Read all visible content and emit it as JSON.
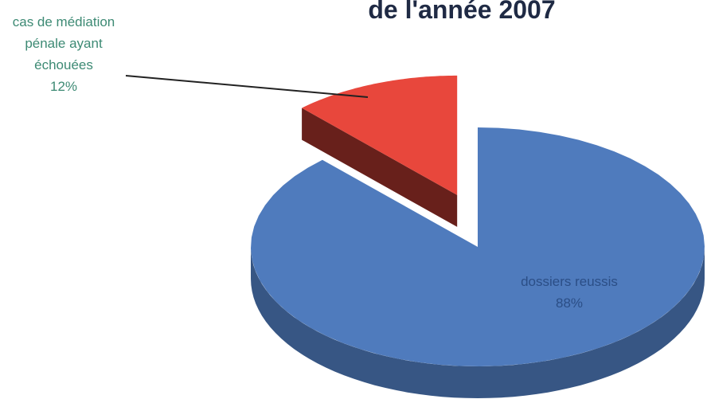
{
  "chart_data": {
    "type": "pie3d",
    "title": "de l'année 2007",
    "categories": [
      "cas de médiation pénale ayant échouées",
      "dossiers reussis"
    ],
    "values": [
      12,
      88
    ],
    "value_labels": [
      "12%",
      "88%"
    ],
    "colors": [
      "#e8473c",
      "#4f7bbd"
    ]
  }
}
